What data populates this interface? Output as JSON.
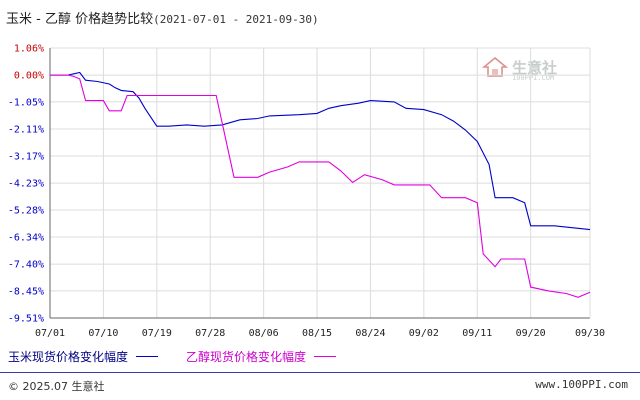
{
  "chart_data": {
    "type": "line",
    "title": "玉米 - 乙醇 价格趋势比较",
    "subtitle": "(2021-07-01 - 2021-09-30)",
    "xlabel": "",
    "ylabel": "",
    "x_ticks": [
      "07/01",
      "07/10",
      "07/19",
      "07/28",
      "08/06",
      "08/15",
      "08/24",
      "09/02",
      "09/11",
      "09/20",
      "09/30"
    ],
    "y_ticks": [
      "1.06%",
      "0.00%",
      "-1.05%",
      "-2.11%",
      "-3.17%",
      "-4.23%",
      "-5.28%",
      "-6.34%",
      "-7.40%",
      "-8.45%",
      "-9.51%"
    ],
    "ylim": [
      -9.51,
      1.06
    ],
    "grid": true,
    "legend_position": "bottom",
    "series": [
      {
        "name": "玉米现货价格变化幅度",
        "color": "#0000cc",
        "points": [
          [
            "07/01",
            0.0
          ],
          [
            "07/04",
            0.0
          ],
          [
            "07/05",
            0.05
          ],
          [
            "07/06",
            0.1
          ],
          [
            "07/07",
            -0.2
          ],
          [
            "07/09",
            -0.25
          ],
          [
            "07/11",
            -0.35
          ],
          [
            "07/12",
            -0.5
          ],
          [
            "07/13",
            -0.6
          ],
          [
            "07/15",
            -0.65
          ],
          [
            "07/16",
            -0.9
          ],
          [
            "07/17",
            -1.3
          ],
          [
            "07/19",
            -2.0
          ],
          [
            "07/21",
            -2.0
          ],
          [
            "07/24",
            -1.95
          ],
          [
            "07/27",
            -2.0
          ],
          [
            "07/30",
            -1.95
          ],
          [
            "08/02",
            -1.75
          ],
          [
            "08/05",
            -1.7
          ],
          [
            "08/07",
            -1.6
          ],
          [
            "08/12",
            -1.55
          ],
          [
            "08/15",
            -1.5
          ],
          [
            "08/17",
            -1.3
          ],
          [
            "08/19",
            -1.2
          ],
          [
            "08/22",
            -1.1
          ],
          [
            "08/24",
            -1.0
          ],
          [
            "08/28",
            -1.05
          ],
          [
            "08/30",
            -1.3
          ],
          [
            "09/02",
            -1.35
          ],
          [
            "09/05",
            -1.55
          ],
          [
            "09/07",
            -1.8
          ],
          [
            "09/09",
            -2.15
          ],
          [
            "09/11",
            -2.6
          ],
          [
            "09/13",
            -3.5
          ],
          [
            "09/14",
            -4.8
          ],
          [
            "09/17",
            -4.8
          ],
          [
            "09/19",
            -5.0
          ],
          [
            "09/20",
            -5.9
          ],
          [
            "09/24",
            -5.9
          ],
          [
            "09/28",
            -6.0
          ],
          [
            "09/30",
            -6.05
          ]
        ]
      },
      {
        "name": "乙醇现货价格变化幅度",
        "color": "#e000e0",
        "points": [
          [
            "07/01",
            0.0
          ],
          [
            "07/04",
            0.0
          ],
          [
            "07/05",
            -0.05
          ],
          [
            "07/06",
            -0.15
          ],
          [
            "07/07",
            -1.0
          ],
          [
            "07/10",
            -1.0
          ],
          [
            "07/11",
            -1.4
          ],
          [
            "07/13",
            -1.4
          ],
          [
            "07/14",
            -0.8
          ],
          [
            "07/15",
            -0.8
          ],
          [
            "07/16",
            -0.8
          ],
          [
            "07/29",
            -0.8
          ],
          [
            "08/01",
            -4.0
          ],
          [
            "08/05",
            -4.0
          ],
          [
            "08/07",
            -3.8
          ],
          [
            "08/10",
            -3.6
          ],
          [
            "08/12",
            -3.4
          ],
          [
            "08/17",
            -3.4
          ],
          [
            "08/19",
            -3.75
          ],
          [
            "08/21",
            -4.2
          ],
          [
            "08/23",
            -3.9
          ],
          [
            "08/26",
            -4.1
          ],
          [
            "08/28",
            -4.3
          ],
          [
            "09/03",
            -4.3
          ],
          [
            "09/05",
            -4.8
          ],
          [
            "09/09",
            -4.8
          ],
          [
            "09/11",
            -5.0
          ],
          [
            "09/12",
            -7.0
          ],
          [
            "09/14",
            -7.5
          ],
          [
            "09/15",
            -7.2
          ],
          [
            "09/19",
            -7.2
          ],
          [
            "09/20",
            -8.3
          ],
          [
            "09/23",
            -8.45
          ],
          [
            "09/26",
            -8.55
          ],
          [
            "09/28",
            -8.7
          ],
          [
            "09/30",
            -8.5
          ]
        ]
      }
    ]
  },
  "legend": {
    "corn_label": "玉米现货价格变化幅度",
    "ethanol_label": "乙醇现货价格变化幅度"
  },
  "watermark": {
    "name": "生意社",
    "site": "100PPI.COM"
  },
  "footer": {
    "copyright": "© 2025.07 生意社",
    "url": "www.100PPI.com"
  },
  "colors": {
    "positive_tick": "#cc0000",
    "negative_tick": "#0000cc",
    "zero_tick": "#cc0000",
    "axis": "#666666",
    "grid": "#dcdcdc"
  }
}
